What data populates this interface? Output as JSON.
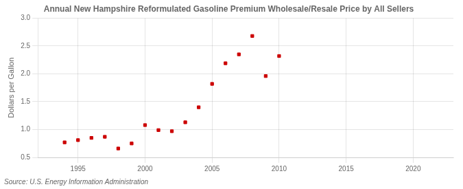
{
  "chart_data": {
    "type": "scatter",
    "title": "Annual New Hampshire Reformulated Gasoline Premium Wholesale/Resale Price by All Sellers",
    "ylabel": "Dollars per Gallon",
    "source": "Source: U.S. Energy Information Administration",
    "x": [
      1994,
      1995,
      1996,
      1997,
      1998,
      1999,
      2000,
      2001,
      2002,
      2003,
      2004,
      2005,
      2006,
      2007,
      2008,
      2009,
      2010
    ],
    "values": [
      0.77,
      0.81,
      0.85,
      0.87,
      0.66,
      0.75,
      1.08,
      0.99,
      0.97,
      1.13,
      1.4,
      1.82,
      2.19,
      2.35,
      2.68,
      1.96,
      2.32
    ],
    "color": "#cc0000",
    "marker": "square",
    "xlim": [
      1992,
      2023
    ],
    "ylim": [
      0.5,
      3.0
    ],
    "xticks": [
      1995,
      2000,
      2005,
      2010,
      2015,
      2020
    ],
    "yticks": [
      0.5,
      {
        "value": 1.0,
        "label": "1.0"
      },
      1.5,
      {
        "value": 2.0,
        "label": "2.0"
      },
      2.5,
      {
        "value": 3.0,
        "label": "3.0"
      }
    ],
    "grid": true
  }
}
